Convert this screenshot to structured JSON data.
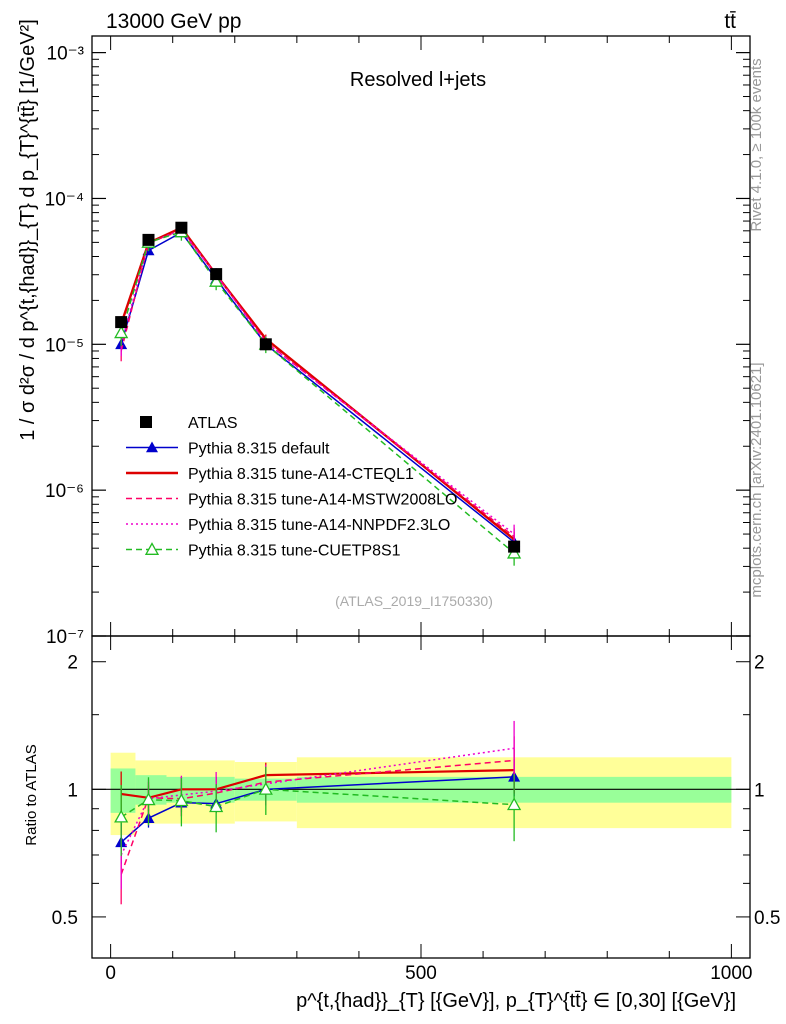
{
  "header": {
    "energy_label": "13000 GeV pp",
    "process_label": "tt̄"
  },
  "side_labels": {
    "rivet": "Rivet 4.1.0, ≥ 100k events",
    "mcplots": "mcplots.cern.ch [arXiv:2401.10621]"
  },
  "main_panel": {
    "title": "Resolved l+jets",
    "watermark": "(ATLAS_2019_I1750330)",
    "ylabel": "1 / σ d²σ / d p^{t,{had}}_{T} d p_{T}^{tt̄} [1/GeV²]",
    "ytick_labels": [
      "10⁻³",
      "10⁻⁴",
      "10⁻⁵",
      "10⁻⁶",
      "10⁻⁷"
    ]
  },
  "ratio_panel": {
    "ylabel": "Ratio to ATLAS",
    "ytick_labels": [
      "2",
      "1",
      "0.5"
    ]
  },
  "xaxis": {
    "label": "p^{t,{had}}_{T} [{GeV}], p_{T}^{tt̄} ∈ [0,30] [{GeV}]",
    "tick_labels": [
      "0",
      "500",
      "1000"
    ]
  },
  "chart_data": {
    "type": "line",
    "title": "Resolved l+jets",
    "xlabel": "p_T^{t,had} [GeV], p_T^{tt̄} in [0,30] [GeV]",
    "ylabel": "1/σ d²σ / d p_T^{t,had} d p_T^{tt̄} [1/GeV²]",
    "xlim": [
      -30,
      1030
    ],
    "ylim": [
      1e-07,
      0.0013
    ],
    "yscale": "log",
    "x": [
      17,
      61,
      114,
      170,
      250,
      650
    ],
    "xedges": [
      0,
      40,
      90,
      200,
      300,
      1000
    ],
    "legend_position": "middle-left",
    "data": {
      "name": "ATLAS",
      "values": [
        1.42e-05,
        5.2e-05,
        6.3e-05,
        3.03e-05,
        1e-05,
        4.1e-07
      ],
      "band_stat": [
        0.12,
        0.08,
        0.07,
        0.06,
        0.07,
        0.16
      ],
      "band_total": [
        0.22,
        0.17,
        0.17,
        0.16,
        0.19,
        0.38
      ]
    },
    "series": [
      {
        "name": "Pythia 8.315 default",
        "color": "#0000cc",
        "dash": "",
        "marker": "triangle-filled",
        "values": [
          1e-05,
          4.4e-05,
          5.85e-05,
          2.8e-05,
          1e-05,
          4.4e-07
        ],
        "ratio": [
          0.75,
          0.855,
          0.93,
          0.925,
          1.0,
          1.07
        ]
      },
      {
        "name": "Pythia 8.315 tune-A14-CTEQL1",
        "color": "#dd0000",
        "dash": "",
        "marker": "none",
        "values": [
          1.38e-05,
          4.95e-05,
          6.3e-05,
          3e-05,
          1.09e-05,
          4.6e-07
        ],
        "ratio": [
          0.975,
          0.955,
          1.0,
          1.0,
          1.08,
          1.11
        ]
      },
      {
        "name": "Pythia 8.315 tune-A14-MSTW2008LO",
        "color": "#ff0066",
        "dash": "6,4",
        "marker": "none",
        "values": [
          9e-06,
          4.95e-05,
          6.05e-05,
          3e-05,
          1.04e-05,
          4.8e-07
        ],
        "ratio": [
          0.63,
          0.955,
          0.95,
          0.98,
          1.04,
          1.17
        ]
      },
      {
        "name": "Pythia 8.315 tune-A14-NNPDF2.3LO",
        "color": "#ee00cc",
        "dash": "2,3",
        "marker": "none",
        "values": [
          1e-05,
          4.95e-05,
          6.1e-05,
          3e-05,
          1.03e-05,
          5e-07
        ],
        "ratio": [
          0.7,
          0.95,
          0.97,
          0.99,
          1.03,
          1.25
        ]
      },
      {
        "name": "Pythia 8.315 tune-CUETP8S1",
        "color": "#22bb22",
        "dash": "6,4",
        "marker": "triangle-open",
        "values": [
          1.2e-05,
          5e-05,
          5.9e-05,
          2.7e-05,
          1e-05,
          3.7e-07
        ],
        "ratio": [
          0.86,
          0.945,
          0.94,
          0.91,
          1.0,
          0.92
        ]
      }
    ],
    "ratio_ylim": [
      0.4,
      2.3
    ],
    "ratio_ylabel": "Ratio to ATLAS"
  }
}
